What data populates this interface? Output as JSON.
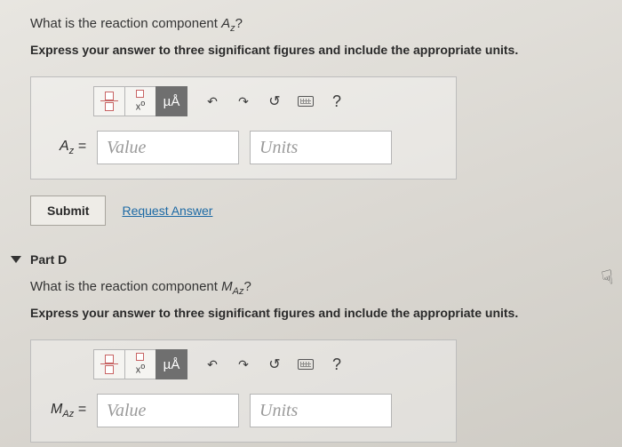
{
  "partC": {
    "question_prefix": "What is the reaction component ",
    "question_var_html": "A",
    "question_var_sub": "z",
    "question_suffix": "?",
    "instruction": "Express your answer to three significant figures and include the appropriate units.",
    "var_label": "A",
    "var_sub": "z",
    "equals": " = ",
    "value_placeholder": "Value",
    "units_placeholder": "Units",
    "toolbar": {
      "units_btn": "µÅ",
      "undo": "↶",
      "redo": "↷",
      "reset": "↺",
      "help": "?"
    },
    "submit_label": "Submit",
    "request_answer_label": "Request Answer"
  },
  "partD": {
    "heading": "Part D",
    "question_prefix": "What is the reaction component ",
    "question_var_html": "M",
    "question_var_sub": "Az",
    "question_suffix": "?",
    "instruction": "Express your answer to three significant figures and include the appropriate units.",
    "var_label": "M",
    "var_sub": "Az",
    "equals": " = ",
    "value_placeholder": "Value",
    "units_placeholder": "Units",
    "toolbar": {
      "units_btn": "µÅ",
      "undo": "↶",
      "redo": "↷",
      "reset": "↺",
      "help": "?"
    }
  },
  "colors": {
    "link": "#1d6aa5",
    "border": "#b5b5b5",
    "selected_bg": "#6f6f6f"
  }
}
